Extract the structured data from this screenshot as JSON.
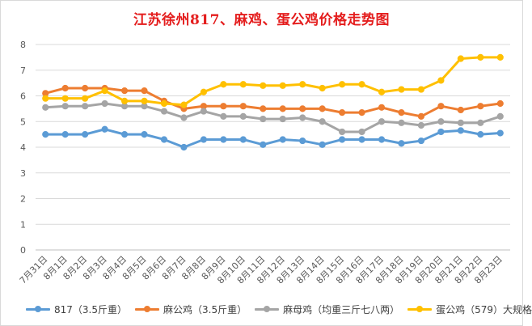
{
  "chart_data": {
    "type": "line",
    "title": "江苏徐州817、麻鸡、蛋公鸡价格走势图",
    "categories": [
      "7月31日",
      "8月1日",
      "8月2日",
      "8月3日",
      "8月4日",
      "8月5日",
      "8月6日",
      "8月7日",
      "8月8日",
      "8月9日",
      "8月10日",
      "8月11日",
      "8月12日",
      "8月13日",
      "8月14日",
      "8月15日",
      "8月16日",
      "8月17日",
      "8月18日",
      "8月19日",
      "8月20日",
      "8月21日",
      "8月22日",
      "8月23日"
    ],
    "ylim": [
      0,
      8
    ],
    "yticks": [
      "0",
      "1",
      "2",
      "3",
      "4",
      "5",
      "6",
      "7",
      "8"
    ],
    "grid": true,
    "legend_position": "bottom",
    "series": [
      {
        "name": "817（3.5斤重）",
        "color": "#5b9bd5",
        "values": [
          4.5,
          4.5,
          4.5,
          4.7,
          4.5,
          4.5,
          4.3,
          4.0,
          4.3,
          4.3,
          4.3,
          4.1,
          4.3,
          4.25,
          4.1,
          4.3,
          4.3,
          4.3,
          4.15,
          4.25,
          4.6,
          4.65,
          4.5,
          4.55
        ]
      },
      {
        "name": "麻公鸡（3.5斤重）",
        "color": "#ed7d31",
        "values": [
          6.1,
          6.3,
          6.3,
          6.3,
          6.2,
          6.2,
          5.8,
          5.5,
          5.6,
          5.6,
          5.6,
          5.5,
          5.5,
          5.5,
          5.5,
          5.35,
          5.35,
          5.55,
          5.35,
          5.2,
          5.6,
          5.45,
          5.6,
          5.7
        ]
      },
      {
        "name": "麻母鸡（均重三斤七八两）",
        "color": "#a5a5a5",
        "values": [
          5.55,
          5.6,
          5.6,
          5.7,
          5.6,
          5.6,
          5.4,
          5.15,
          5.4,
          5.2,
          5.2,
          5.1,
          5.1,
          5.15,
          5.0,
          4.6,
          4.6,
          5.0,
          4.95,
          4.85,
          5.0,
          4.95,
          4.95,
          5.2
        ]
      },
      {
        "name": "蛋公鸡（579）大规格",
        "color": "#ffc000",
        "values": [
          5.9,
          5.9,
          5.9,
          6.2,
          5.8,
          5.8,
          5.7,
          5.65,
          6.15,
          6.45,
          6.45,
          6.4,
          6.4,
          6.45,
          6.3,
          6.45,
          6.45,
          6.15,
          6.25,
          6.25,
          6.6,
          7.45,
          7.5,
          7.5
        ]
      }
    ]
  }
}
